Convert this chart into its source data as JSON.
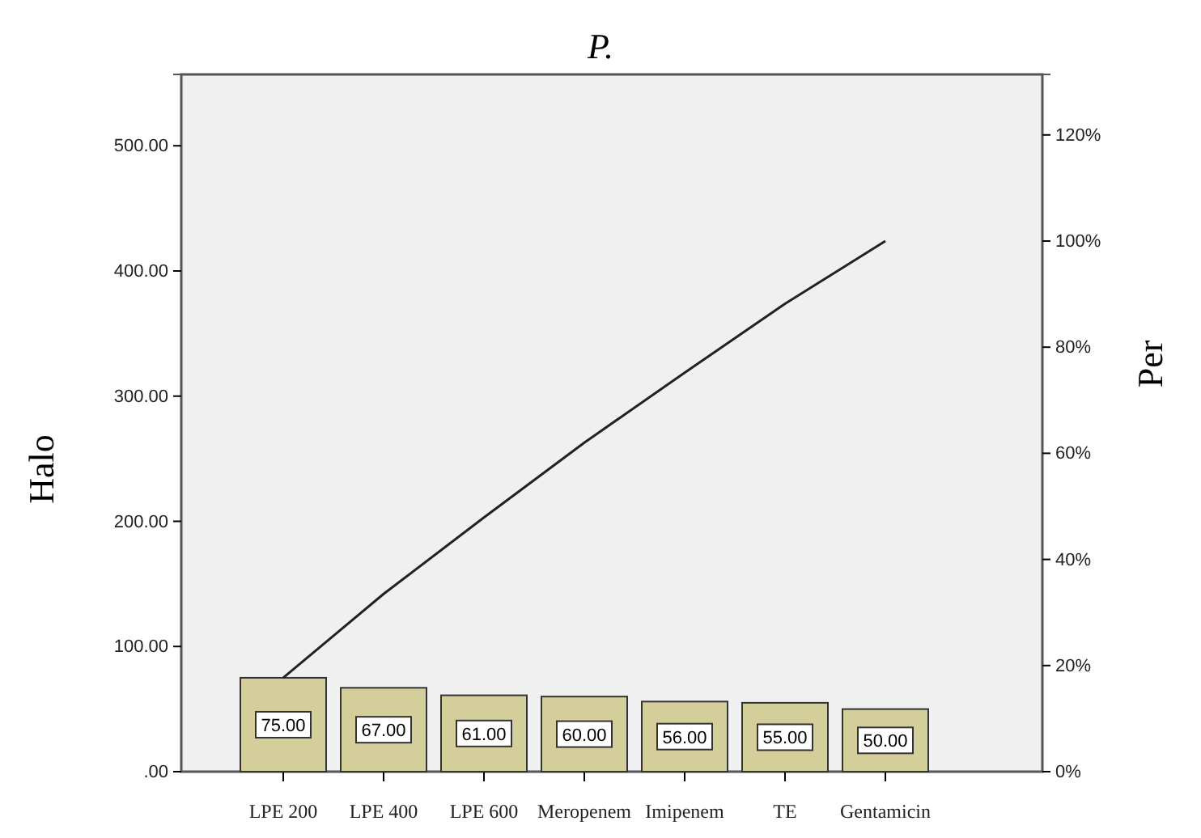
{
  "chart_data": {
    "type": "bar",
    "title": "P.",
    "ylabel": "Halo",
    "y2label": "Per",
    "categories": [
      "LPE 200",
      "LPE 400",
      "LPE 600",
      "Meropenem",
      "Imipenem",
      "TE",
      "Gentamicin"
    ],
    "series": [
      {
        "color": "#d4cf9a",
        "values": [
          75,
          67,
          61,
          60,
          56,
          55,
          50
        ],
        "value_labels": [
          "75.00",
          "67.00",
          "61.00",
          "60.00",
          "56.00",
          "55.00",
          "50.00"
        ]
      },
      {
        "type": "line",
        "axis": "y2",
        "color": "#222222",
        "values": [
          17.7,
          33.5,
          47.9,
          62.0,
          75.2,
          88.2,
          100
        ]
      }
    ],
    "ylim": [
      0,
      557
    ],
    "yticks": [
      {
        "value": 0,
        "label": ".00"
      },
      {
        "value": 100,
        "label": "100.00"
      },
      {
        "value": 200,
        "label": "200.00"
      },
      {
        "value": 300,
        "label": "300.00"
      },
      {
        "value": 400,
        "label": "400.00"
      },
      {
        "value": 500,
        "label": "500.00"
      }
    ],
    "y2lim": [
      0,
      131.4
    ],
    "y2ticks": [
      {
        "value": 0,
        "label": "0%"
      },
      {
        "value": 20,
        "label": "20%"
      },
      {
        "value": 40,
        "label": "40%"
      },
      {
        "value": 60,
        "label": "60%"
      },
      {
        "value": 80,
        "label": "80%"
      },
      {
        "value": 100,
        "label": "100%"
      },
      {
        "value": 120,
        "label": "120%"
      }
    ],
    "grid": false
  }
}
